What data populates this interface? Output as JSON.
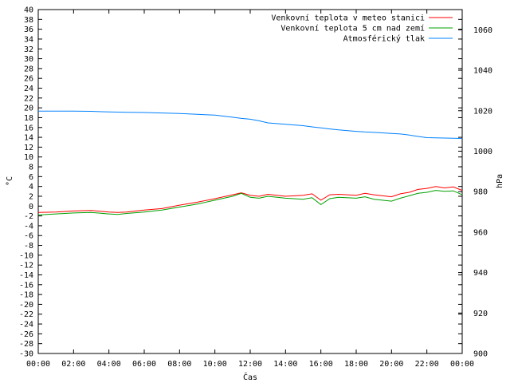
{
  "chart_data": {
    "type": "line",
    "xlabel": "Čas",
    "ylabel_left": "°C",
    "ylabel_right": "hPa",
    "ylim_left": [
      -30,
      40
    ],
    "ylim_right": [
      900,
      1070
    ],
    "yticks_left": [
      40,
      38,
      36,
      34,
      32,
      30,
      28,
      26,
      24,
      22,
      20,
      18,
      16,
      14,
      12,
      10,
      8,
      6,
      4,
      2,
      0,
      -2,
      -4,
      -6,
      -8,
      -10,
      -12,
      -14,
      -16,
      -18,
      -20,
      -22,
      -24,
      -26,
      -28,
      -30
    ],
    "yticks_right": [
      1060,
      1040,
      1020,
      1000,
      980,
      960,
      940,
      920,
      900
    ],
    "xlim_hours": [
      0,
      24
    ],
    "xticks": [
      "00:00",
      "02:00",
      "04:00",
      "06:00",
      "08:00",
      "10:00",
      "12:00",
      "14:00",
      "16:00",
      "18:00",
      "20:00",
      "22:00",
      "00:00"
    ],
    "grid": false,
    "legend_position": "top-right",
    "x_hours": [
      0,
      1,
      2,
      3,
      4,
      4.5,
      5,
      6,
      7,
      8,
      9,
      10,
      11,
      11.5,
      12,
      12.5,
      13,
      14,
      15,
      15.5,
      16,
      16.5,
      17,
      18,
      18.5,
      19,
      20,
      20.5,
      21,
      21.5,
      22,
      22.5,
      23,
      23.5,
      24
    ],
    "series": [
      {
        "name": "Venkovní teplota v meteo stanici",
        "color": "#ff0000",
        "axis": "left",
        "values": [
          -1.3,
          -1.2,
          -1.0,
          -0.9,
          -1.2,
          -1.3,
          -1.2,
          -0.8,
          -0.5,
          0.2,
          0.8,
          1.5,
          2.3,
          2.7,
          2.2,
          2.0,
          2.4,
          2.0,
          2.2,
          2.5,
          1.2,
          2.3,
          2.4,
          2.2,
          2.6,
          2.3,
          1.9,
          2.5,
          2.8,
          3.4,
          3.6,
          4.0,
          3.7,
          3.9,
          3.2
        ]
      },
      {
        "name": "Venkovní teplota 5 cm nad zemí",
        "color": "#00a000",
        "axis": "left",
        "values": [
          -1.8,
          -1.6,
          -1.4,
          -1.3,
          -1.6,
          -1.7,
          -1.5,
          -1.2,
          -0.8,
          -0.2,
          0.4,
          1.2,
          2.0,
          2.6,
          1.8,
          1.6,
          2.0,
          1.6,
          1.4,
          1.7,
          0.3,
          1.5,
          1.8,
          1.6,
          1.9,
          1.4,
          1.0,
          1.6,
          2.1,
          2.6,
          2.8,
          3.2,
          3.0,
          3.1,
          2.3
        ]
      },
      {
        "name": "Atmosférický tlak",
        "color": "#0080ff",
        "axis": "right",
        "values": [
          1019.8,
          1019.8,
          1019.8,
          1019.7,
          1019.4,
          1019.3,
          1019.2,
          1019.1,
          1018.9,
          1018.6,
          1018.2,
          1017.8,
          1016.8,
          1016.2,
          1015.8,
          1015.0,
          1014.0,
          1013.3,
          1012.6,
          1012.0,
          1011.5,
          1011.0,
          1010.5,
          1009.8,
          1009.5,
          1009.3,
          1008.8,
          1008.5,
          1008.0,
          1007.3,
          1006.7,
          1006.6,
          1006.5,
          1006.4,
          1006.3
        ]
      }
    ]
  }
}
